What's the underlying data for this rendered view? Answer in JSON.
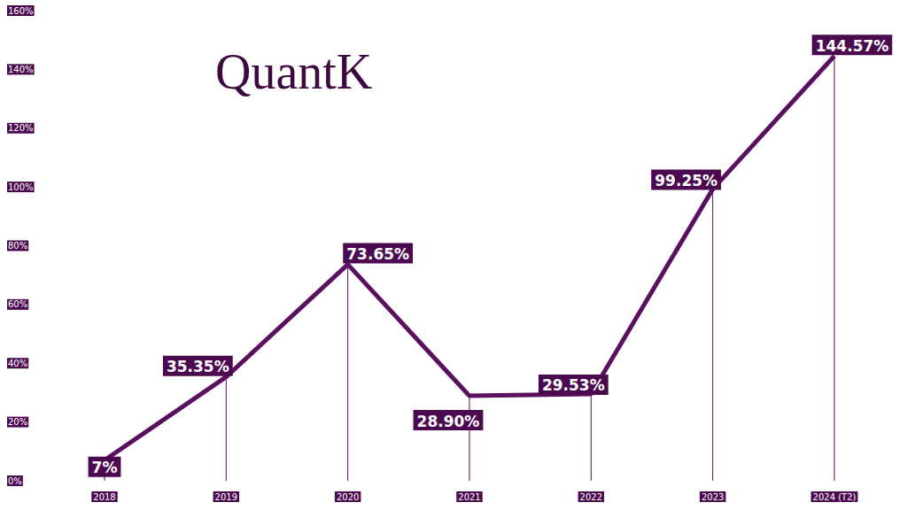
{
  "chart_data": {
    "type": "line",
    "title": "QuantK",
    "categories": [
      "2018",
      "2019",
      "2020",
      "2021",
      "2022",
      "2023",
      "2024 (T2)"
    ],
    "values": [
      7,
      35.35,
      73.65,
      28.9,
      29.53,
      99.25,
      144.57
    ],
    "value_labels": [
      "7%",
      "35.35%",
      "73.65%",
      "28.90%",
      "29.53%",
      "99.25%",
      "144.57%"
    ],
    "color": "#5a0f5f",
    "ylim": [
      0,
      160
    ],
    "yticks": [
      {
        "value": 0,
        "label": "0%"
      },
      {
        "value": 20,
        "label": "20%"
      },
      {
        "value": 40,
        "label": "40%"
      },
      {
        "value": 60,
        "label": "60%"
      },
      {
        "value": 80,
        "label": "80%"
      },
      {
        "value": 100,
        "label": "100%"
      },
      {
        "value": 120,
        "label": "120%"
      },
      {
        "value": 140,
        "label": "140%"
      },
      {
        "value": 160,
        "label": "160%"
      }
    ],
    "grid": false,
    "data_labels": true
  }
}
